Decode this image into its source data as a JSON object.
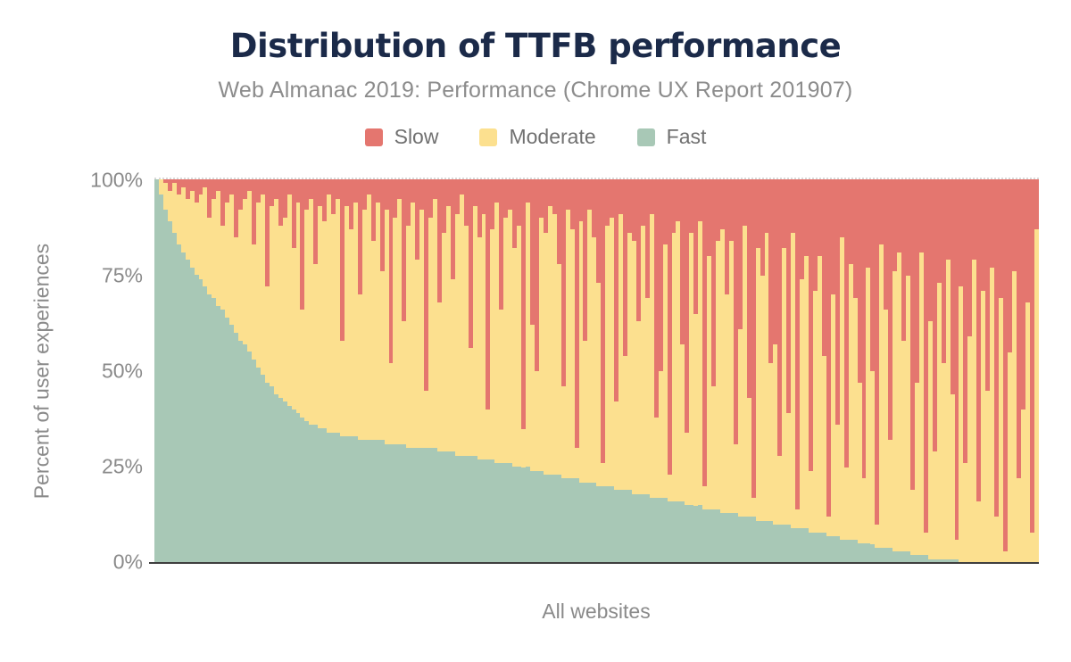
{
  "title": "Distribution of TTFB performance",
  "subtitle": "Web Almanac 2019: Performance (Chrome UX Report 201907)",
  "legend": [
    {
      "label": "Slow",
      "color": "#e4766f"
    },
    {
      "label": "Moderate",
      "color": "#fce08f"
    },
    {
      "label": "Fast",
      "color": "#a8c8b6"
    }
  ],
  "y_axis": {
    "title": "Percent of user experiences",
    "ticks": [
      "100%",
      "75%",
      "50%",
      "25%",
      "0%"
    ]
  },
  "x_axis": {
    "label": "All websites"
  },
  "colors": {
    "background": "#ffffff",
    "title_text": "#1b2a49",
    "muted_text": "#8c8c8c",
    "axis_line": "#3e3e3e",
    "gridline": "#d9d9d9",
    "slow": "#e4766f",
    "moderate": "#fce08f",
    "fast": "#a8c8b6"
  },
  "chart_data": {
    "type": "bar",
    "stacked": true,
    "normalized_to_100_percent": true,
    "title": "Distribution of TTFB performance",
    "subtitle": "Web Almanac 2019: Performance (Chrome UX Report 201907)",
    "xlabel": "All websites",
    "ylabel": "Percent of user experiences",
    "ylim": [
      0,
      100
    ],
    "y_ticks_percent": [
      0,
      25,
      50,
      75,
      100
    ],
    "legend_position": "top",
    "grid": "dotted line at 100% only",
    "x_count": 200,
    "x_description": "Individual websites, sorted by share of Fast TTFB experiences (descending); values estimated from pixels",
    "series": [
      {
        "name": "Fast",
        "color": "#a8c8b6",
        "values": [
          100,
          96,
          92,
          89,
          86,
          83,
          81,
          79,
          77,
          75,
          74,
          72,
          70,
          69,
          67,
          66,
          64,
          62,
          60,
          58,
          57,
          55,
          53,
          51,
          49,
          47,
          46,
          44,
          43,
          42,
          41,
          40,
          39,
          38,
          37,
          36,
          36,
          35,
          35,
          34,
          34,
          34,
          33,
          33,
          33,
          33,
          32,
          32,
          32,
          32,
          32,
          32,
          31,
          31,
          31,
          31,
          31,
          30,
          30,
          30,
          30,
          30,
          30,
          30,
          29,
          29,
          29,
          29,
          28,
          28,
          28,
          28,
          28,
          27,
          27,
          27,
          27,
          26,
          26,
          26,
          26,
          25,
          25,
          25,
          25,
          24,
          24,
          24,
          23,
          23,
          23,
          23,
          22,
          22,
          22,
          22,
          21,
          21,
          21,
          21,
          20,
          20,
          20,
          20,
          19,
          19,
          19,
          19,
          18,
          18,
          18,
          18,
          17,
          17,
          17,
          17,
          16,
          16,
          16,
          16,
          15,
          15,
          15,
          15,
          14,
          14,
          14,
          14,
          13,
          13,
          13,
          13,
          12,
          12,
          12,
          12,
          11,
          11,
          11,
          11,
          10,
          10,
          10,
          10,
          9,
          9,
          9,
          9,
          8,
          8,
          8,
          8,
          7,
          7,
          7,
          6,
          6,
          6,
          6,
          5,
          5,
          5,
          5,
          4,
          4,
          4,
          4,
          3,
          3,
          3,
          3,
          2,
          2,
          2,
          2,
          1,
          1,
          1,
          1,
          1,
          1,
          1,
          0,
          0,
          0,
          0,
          0,
          0,
          0,
          0,
          0,
          0,
          0,
          0,
          0,
          0,
          0,
          0,
          0,
          0
        ]
      },
      {
        "name": "Moderate",
        "color": "#fce08f",
        "values": [
          0,
          4,
          7,
          8,
          13,
          13,
          17,
          16,
          20,
          19,
          22,
          26,
          20,
          26,
          30,
          22,
          30,
          34,
          25,
          34,
          38,
          42,
          30,
          43,
          47,
          25,
          47,
          51,
          45,
          48,
          55,
          42,
          55,
          28,
          55,
          59,
          42,
          58,
          54,
          62,
          57,
          61,
          25,
          60,
          54,
          61,
          38,
          60,
          64,
          52,
          62,
          44,
          61,
          21,
          59,
          64,
          32,
          58,
          64,
          49,
          62,
          15,
          60,
          65,
          39,
          57,
          64,
          45,
          63,
          68,
          60,
          28,
          65,
          58,
          64,
          13,
          60,
          68,
          40,
          64,
          66,
          57,
          63,
          10,
          69,
          38,
          26,
          66,
          63,
          70,
          68,
          55,
          24,
          70,
          65,
          8,
          68,
          37,
          71,
          64,
          53,
          6,
          68,
          70,
          23,
          72,
          35,
          67,
          66,
          45,
          70,
          51,
          74,
          21,
          33,
          66,
          7,
          70,
          73,
          41,
          19,
          71,
          50,
          74,
          6,
          66,
          32,
          70,
          74,
          57,
          71,
          18,
          49,
          76,
          31,
          5,
          71,
          64,
          75,
          41,
          47,
          18,
          72,
          29,
          77,
          5,
          65,
          71,
          16,
          63,
          72,
          46,
          5,
          63,
          29,
          79,
          19,
          72,
          63,
          42,
          17,
          72,
          45,
          6,
          79,
          62,
          28,
          73,
          78,
          55,
          72,
          17,
          45,
          79,
          6,
          62,
          28,
          72,
          51,
          78,
          43,
          5,
          72,
          26,
          59,
          79,
          16,
          71,
          45,
          77,
          12,
          69,
          3,
          55,
          76,
          22,
          40,
          68,
          8,
          87
        ]
      },
      {
        "name": "Slow",
        "color": "#e4766f",
        "values_note": "Slow = 100 - Fast - Moderate for each bar (stack always sums to 100%)"
      }
    ]
  }
}
